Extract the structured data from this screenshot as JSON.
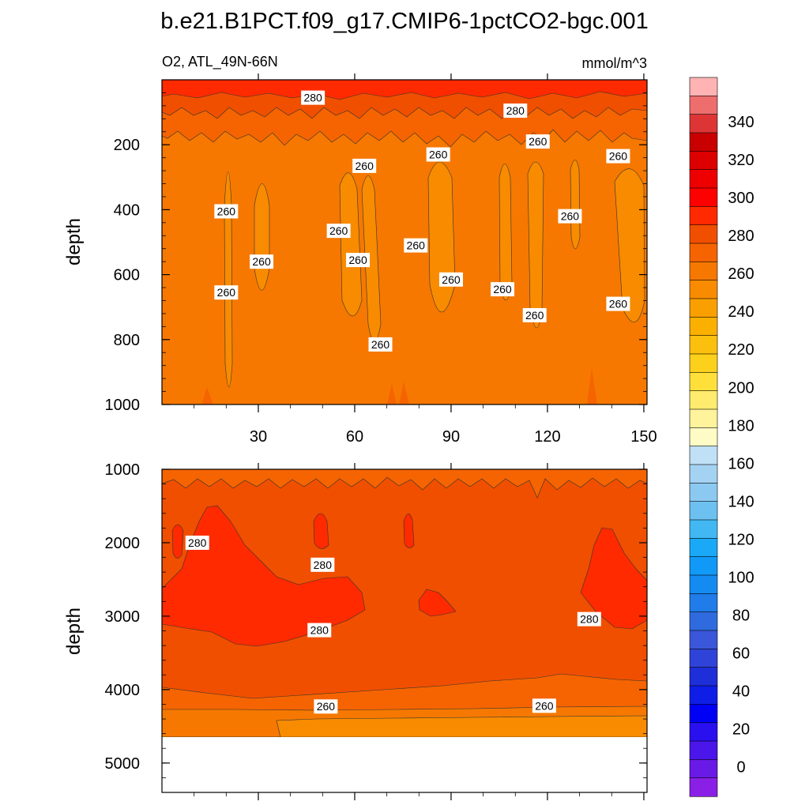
{
  "chart_data": {
    "type": "heatmap",
    "title": "b.e21.B1PCT.f09_g17.CMIP6-1pctCO2-bgc.001",
    "subtitle_left": "O2, ATL_49N-66N",
    "units": "mmol/m^3",
    "ylabel": "depth",
    "x_ticks": [
      "30",
      "60",
      "90",
      "120",
      "150"
    ],
    "xlim": [
      0,
      151
    ],
    "panels": [
      {
        "name": "upper",
        "ylim": [
          0,
          1000
        ],
        "y_ticks": [
          "200",
          "400",
          "600",
          "800",
          "1000"
        ],
        "band_colors": [
          "#e4290b",
          "#f04508",
          "#f76605",
          "#fa7a0d"
        ],
        "band_tops": [
          0,
          30,
          110,
          1000
        ],
        "contour_labels": [
          {
            "text": "280",
            "x": 47,
            "y": 55
          },
          {
            "text": "280",
            "x": 110,
            "y": 95
          },
          {
            "text": "260",
            "x": 117,
            "y": 190
          },
          {
            "text": "260",
            "x": 142,
            "y": 235
          },
          {
            "text": "260",
            "x": 63,
            "y": 265
          },
          {
            "text": "260",
            "x": 86,
            "y": 230
          },
          {
            "text": "260",
            "x": 20,
            "y": 405
          },
          {
            "text": "260",
            "x": 55,
            "y": 465
          },
          {
            "text": "260",
            "x": 31,
            "y": 560
          },
          {
            "text": "260",
            "x": 61,
            "y": 555
          },
          {
            "text": "260",
            "x": 79,
            "y": 510
          },
          {
            "text": "260",
            "x": 127,
            "y": 420
          },
          {
            "text": "260",
            "x": 20,
            "y": 655
          },
          {
            "text": "260",
            "x": 90,
            "y": 615
          },
          {
            "text": "260",
            "x": 106,
            "y": 645
          },
          {
            "text": "260",
            "x": 116,
            "y": 725
          },
          {
            "text": "260",
            "x": 142,
            "y": 690
          },
          {
            "text": "260",
            "x": 68,
            "y": 815
          }
        ]
      },
      {
        "name": "lower",
        "ylim": [
          1000,
          5400
        ],
        "y_ticks": [
          "1000",
          "2000",
          "3000",
          "4000",
          "5000"
        ],
        "ocean_bottom": 4620,
        "contour_labels": [
          {
            "text": "280",
            "x": 11,
            "y": 2000
          },
          {
            "text": "280",
            "x": 50,
            "y": 2300
          },
          {
            "text": "280",
            "x": 49,
            "y": 3190
          },
          {
            "text": "280",
            "x": 133,
            "y": 3040
          },
          {
            "text": "260",
            "x": 51,
            "y": 4230
          },
          {
            "text": "260",
            "x": 119,
            "y": 4220
          }
        ]
      }
    ],
    "colorbar": {
      "labels": [
        "340",
        "320",
        "300",
        "280",
        "260",
        "240",
        "220",
        "200",
        "180",
        "160",
        "140",
        "120",
        "100",
        "80",
        "60",
        "40",
        "20",
        "0"
      ],
      "colors_top_to_bottom": [
        "#ffb3b3",
        "#ee6d6d",
        "#dd3535",
        "#c80000",
        "#dd0000",
        "#ee0000",
        "#ff0000",
        "#ff2a00",
        "#f04f00",
        "#f56400",
        "#f67800",
        "#f88b00",
        "#fa9f00",
        "#fbb000",
        "#fbc00d",
        "#fdd11b",
        "#ffe03a",
        "#ffeb6e",
        "#fff39c",
        "#fffbc6",
        "#bfe0f5",
        "#a4d2f2",
        "#8cc9f0",
        "#6dc1f1",
        "#42b8f2",
        "#1aa9f6",
        "#1199f7",
        "#148bf0",
        "#1f7ce9",
        "#2f6bde",
        "#3957d8",
        "#2f43d8",
        "#1e2ed8",
        "#0f1ee6",
        "#0000f5",
        "#2a10ee",
        "#4a16ea",
        "#6a1ae6",
        "#8a1fe6"
      ]
    }
  }
}
